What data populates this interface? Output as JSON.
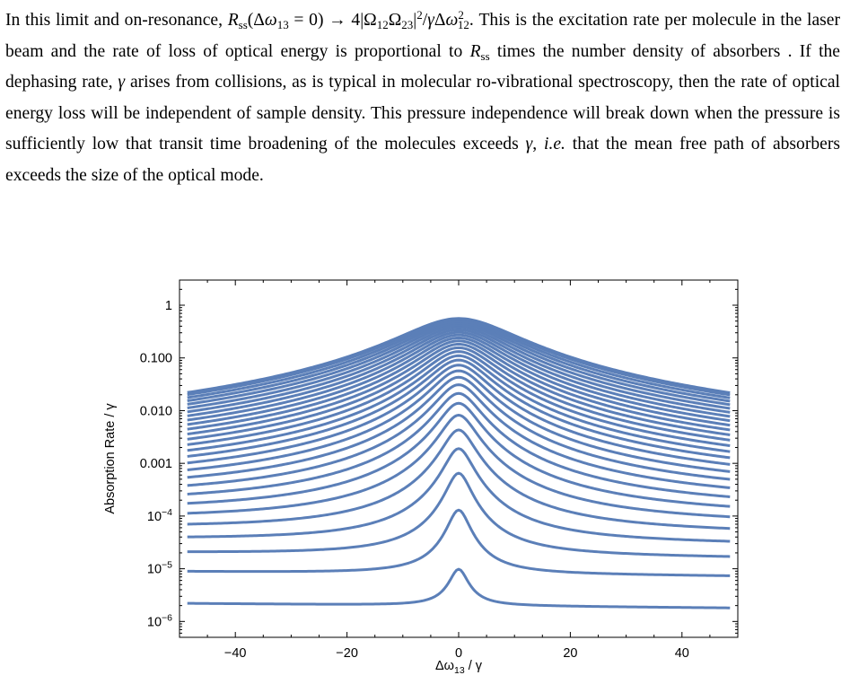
{
  "paragraph": {
    "lead": "In this limit and on-resonance,",
    "equation": {
      "R": "R",
      "R_sub": "ss",
      "arg_open": "(Δ",
      "omega": "ω",
      "omega_sub": "13",
      "arg_eq": " = 0) → 4|Ω",
      "Omega1_sub": "12",
      "Omega2": "Ω",
      "Omega2_sub": "23",
      "pipe": "|",
      "sq": "2",
      "slash": "/",
      "gamma": "γ",
      "delta": "Δ",
      "omega2": "ω",
      "omega2_sup": "2",
      "omega2_sub": "12",
      "end": "."
    },
    "text_1": " This is the excitation rate per molecule in the laser beam and the rate of loss of optical energy is proportional to ",
    "Rss_R": "R",
    "Rss_sub": "ss",
    "text_2": " times the number density of absorbers . If the dephasing rate, ",
    "gamma_1": "γ",
    "text_3": " arises from collisions, as is typical in molecular ro-vibrational spectroscopy, then the rate of optical energy loss will be independent of sample density. This pressure independence will break down when the pressure is sufficiently low that transit time broadening of the molecules exceeds ",
    "gamma_2": "γ",
    "text_4": ", ",
    "ie": "i.e.",
    "text_5": " that the mean free path of absorbers exceeds the size of the optical mode."
  },
  "chart_data": {
    "type": "line",
    "y_scale": "log",
    "xlabel": "Δω₁₃ / γ",
    "xlabel_parts": {
      "delta_omega": "Δω",
      "sub": "13",
      "rest": " / γ"
    },
    "ylabel": "Absorption Rate / γ",
    "xlim": [
      -50,
      50
    ],
    "ylim": [
      5e-07,
      3
    ],
    "x_ticks": [
      -40,
      -20,
      0,
      20,
      40
    ],
    "x_tick_labels": [
      "−40",
      "−20",
      "0",
      "20",
      "40"
    ],
    "y_ticks": [
      1e-06,
      1e-05,
      0.0001,
      0.001,
      0.01,
      0.1,
      1
    ],
    "y_tick_labels": [
      {
        "base": "10",
        "exp": "−6"
      },
      {
        "base": "10",
        "exp": "−5"
      },
      {
        "base": "10",
        "exp": "−4"
      },
      {
        "text": "0.001"
      },
      {
        "text": "0.010"
      },
      {
        "text": "0.100"
      },
      {
        "text": "1"
      }
    ],
    "line_color": "#5b7fb8",
    "series": [
      {
        "left": 2.2e-06,
        "right": 1.8e-06,
        "peak": 9.8e-06,
        "width": 1.6
      },
      {
        "left": 8.8e-06,
        "right": 7.2e-06,
        "peak": 0.00013,
        "width": 1.8
      },
      {
        "left": 2e-05,
        "right": 1.6e-05,
        "peak": 0.00065,
        "width": 2.0
      },
      {
        "left": 3.6e-05,
        "right": 2.9e-05,
        "peak": 0.0019,
        "width": 2.3
      },
      {
        "left": 5.8e-05,
        "right": 4.6e-05,
        "peak": 0.0043,
        "width": 2.6
      },
      {
        "left": 8.4e-05,
        "right": 6.8e-05,
        "peak": 0.0082,
        "width": 2.9
      },
      {
        "left": 0.000115,
        "right": 9.3e-05,
        "peak": 0.0138,
        "width": 3.2
      },
      {
        "left": 0.000152,
        "right": 0.000123,
        "peak": 0.0212,
        "width": 3.5
      },
      {
        "left": 0.000193,
        "right": 0.000156,
        "peak": 0.031,
        "width": 3.8
      },
      {
        "left": 0.00024,
        "right": 0.000194,
        "peak": 0.043,
        "width": 4.1
      },
      {
        "left": 0.00029,
        "right": 0.000235,
        "peak": 0.057,
        "width": 4.4
      },
      {
        "left": 0.000345,
        "right": 0.00028,
        "peak": 0.073,
        "width": 4.7
      },
      {
        "left": 0.000405,
        "right": 0.000328,
        "peak": 0.091,
        "width": 5.0
      },
      {
        "left": 0.00047,
        "right": 0.00038,
        "peak": 0.11,
        "width": 5.3
      },
      {
        "left": 0.00054,
        "right": 0.000435,
        "peak": 0.132,
        "width": 5.6
      },
      {
        "left": 0.00061,
        "right": 0.000495,
        "peak": 0.156,
        "width": 5.9
      },
      {
        "left": 0.00069,
        "right": 0.00056,
        "peak": 0.182,
        "width": 6.2
      },
      {
        "left": 0.00077,
        "right": 0.000625,
        "peak": 0.21,
        "width": 6.5
      },
      {
        "left": 0.00086,
        "right": 0.000695,
        "peak": 0.24,
        "width": 6.8
      },
      {
        "left": 0.00095,
        "right": 0.00077,
        "peak": 0.272,
        "width": 7.1
      },
      {
        "left": 0.00104,
        "right": 0.000845,
        "peak": 0.306,
        "width": 7.4
      },
      {
        "left": 0.00114,
        "right": 0.000925,
        "peak": 0.342,
        "width": 7.7
      },
      {
        "left": 0.00124,
        "right": 0.00101,
        "peak": 0.38,
        "width": 8.0
      },
      {
        "left": 0.00134,
        "right": 0.00109,
        "peak": 0.42,
        "width": 8.3
      },
      {
        "left": 0.00143,
        "right": 0.00117,
        "peak": 0.46,
        "width": 8.6
      },
      {
        "left": 0.00147,
        "right": 0.00122,
        "peak": 0.5,
        "width": 8.9
      },
      {
        "left": 0.0015,
        "right": 0.00125,
        "peak": 0.54,
        "width": 9.2
      },
      {
        "left": 0.00152,
        "right": 0.00127,
        "peak": 0.56,
        "width": 9.5
      }
    ]
  }
}
